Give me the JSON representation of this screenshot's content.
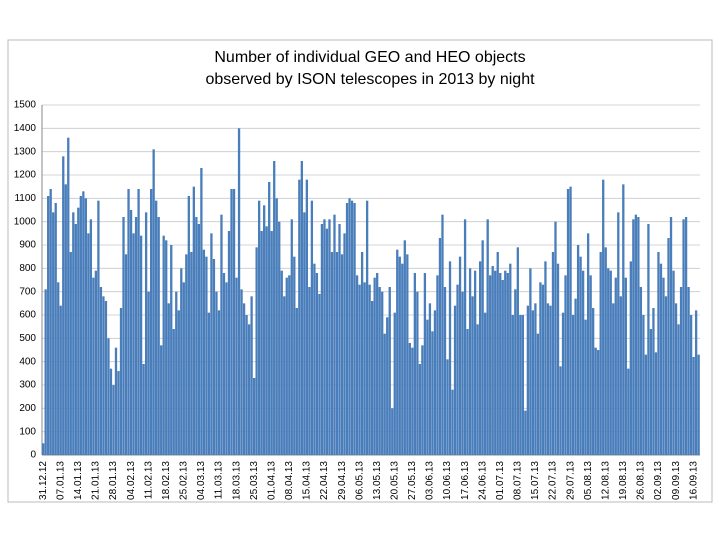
{
  "chart_data": {
    "type": "bar",
    "title": [
      "Number of individual GEO and HEO objects",
      "observed by ISON telescopes in 2013 by night"
    ],
    "categories": [
      "31.12.12",
      null,
      null,
      null,
      null,
      null,
      null,
      "07.01.13",
      null,
      null,
      null,
      null,
      null,
      null,
      "14.01.13",
      null,
      null,
      null,
      null,
      null,
      null,
      "21.01.13",
      null,
      null,
      null,
      null,
      null,
      null,
      "28.01.13",
      null,
      null,
      null,
      null,
      null,
      null,
      "04.02.13",
      null,
      null,
      null,
      null,
      null,
      null,
      "11.02.13",
      null,
      null,
      null,
      null,
      null,
      null,
      "18.02.13",
      null,
      null,
      null,
      null,
      null,
      null,
      "25.02.13",
      null,
      null,
      null,
      null,
      null,
      null,
      "04.03.13",
      null,
      null,
      null,
      null,
      null,
      null,
      "11.03.13",
      null,
      null,
      null,
      null,
      null,
      null,
      "18.03.13",
      null,
      null,
      null,
      null,
      null,
      null,
      "25.03.13",
      null,
      null,
      null,
      null,
      null,
      null,
      "01.04.13",
      null,
      null,
      null,
      null,
      null,
      null,
      "08.04.13",
      null,
      null,
      null,
      null,
      null,
      null,
      "15.04.13",
      null,
      null,
      null,
      null,
      null,
      null,
      "22.04.13",
      null,
      null,
      null,
      null,
      null,
      null,
      "29.04.13",
      null,
      null,
      null,
      null,
      null,
      null,
      "06.05.13",
      null,
      null,
      null,
      null,
      null,
      null,
      "13.05.13",
      null,
      null,
      null,
      null,
      null,
      null,
      "20.05.13",
      null,
      null,
      null,
      null,
      null,
      null,
      "27.05.13",
      null,
      null,
      null,
      null,
      null,
      null,
      "03.06.13",
      null,
      null,
      null,
      null,
      null,
      null,
      "10.06.13",
      null,
      null,
      null,
      null,
      null,
      null,
      "17.06.13",
      null,
      null,
      null,
      null,
      null,
      null,
      "24.06.13",
      null,
      null,
      null,
      null,
      null,
      null,
      "01.07.13",
      null,
      null,
      null,
      null,
      null,
      null,
      "08.07.13",
      null,
      null,
      null,
      null,
      null,
      null,
      "15.07.13",
      null,
      null,
      null,
      null,
      null,
      null,
      "22.07.13",
      null,
      null,
      null,
      null,
      null,
      null,
      "29.07.13",
      null,
      null,
      null,
      null,
      null,
      null,
      "05.08.13",
      null,
      null,
      null,
      null,
      null,
      null,
      "12.08.13",
      null,
      null,
      null,
      null,
      null,
      null,
      "19.08.13",
      null,
      null,
      null,
      null,
      null,
      null,
      "26.08.13",
      null,
      null,
      null,
      null,
      null,
      null,
      "02.09.13",
      null,
      null,
      null,
      null,
      null,
      null,
      "09.09.13",
      null,
      null,
      null,
      null,
      null,
      null,
      "16.09.13",
      null,
      null
    ],
    "values": [
      50,
      710,
      1110,
      1140,
      1040,
      1080,
      740,
      640,
      1280,
      1160,
      1360,
      870,
      1040,
      990,
      1060,
      1110,
      1130,
      1100,
      950,
      1010,
      760,
      790,
      1090,
      720,
      680,
      660,
      500,
      370,
      300,
      460,
      360,
      630,
      1020,
      860,
      1140,
      1050,
      950,
      1020,
      1140,
      940,
      390,
      1040,
      700,
      1140,
      1310,
      1090,
      1020,
      470,
      940,
      920,
      650,
      900,
      540,
      700,
      620,
      800,
      740,
      860,
      1110,
      870,
      1150,
      1020,
      990,
      1230,
      880,
      850,
      610,
      950,
      840,
      700,
      620,
      1030,
      780,
      740,
      960,
      1140,
      1140,
      760,
      1400,
      710,
      650,
      600,
      560,
      680,
      330,
      890,
      1090,
      960,
      1070,
      980,
      1170,
      960,
      1260,
      1100,
      1000,
      790,
      680,
      760,
      770,
      1010,
      850,
      630,
      1180,
      1260,
      1040,
      1180,
      720,
      1090,
      820,
      780,
      690,
      990,
      1010,
      970,
      1010,
      870,
      1030,
      870,
      990,
      860,
      950,
      1080,
      1100,
      1090,
      1080,
      770,
      730,
      870,
      740,
      1090,
      730,
      660,
      760,
      780,
      720,
      700,
      520,
      590,
      720,
      200,
      610,
      880,
      850,
      820,
      920,
      860,
      480,
      460,
      780,
      700,
      390,
      470,
      780,
      580,
      650,
      530,
      620,
      770,
      930,
      1030,
      720,
      410,
      830,
      280,
      640,
      730,
      850,
      700,
      1010,
      540,
      800,
      680,
      790,
      560,
      830,
      920,
      610,
      1010,
      770,
      810,
      790,
      870,
      780,
      750,
      790,
      780,
      820,
      600,
      710,
      890,
      600,
      600,
      190,
      640,
      800,
      620,
      650,
      520,
      740,
      730,
      830,
      650,
      640,
      870,
      1000,
      820,
      380,
      610,
      770,
      1140,
      1150,
      600,
      670,
      900,
      850,
      790,
      580,
      950,
      770,
      630,
      460,
      450,
      870,
      1180,
      890,
      800,
      790,
      650,
      760,
      1040,
      680,
      1160,
      760,
      370,
      830,
      1010,
      1030,
      1020,
      720,
      600,
      430,
      990,
      540,
      630,
      440,
      870,
      820,
      760,
      680,
      930,
      1020,
      790,
      650,
      560,
      720,
      1010,
      1020,
      720,
      600,
      420,
      620,
      430
    ],
    "color": "#4a7ebb",
    "ylim": [
      0,
      1500
    ],
    "yticks": [
      0,
      100,
      200,
      300,
      400,
      500,
      600,
      700,
      800,
      900,
      1000,
      1100,
      1200,
      1300,
      1400,
      1500
    ],
    "grid": true
  }
}
